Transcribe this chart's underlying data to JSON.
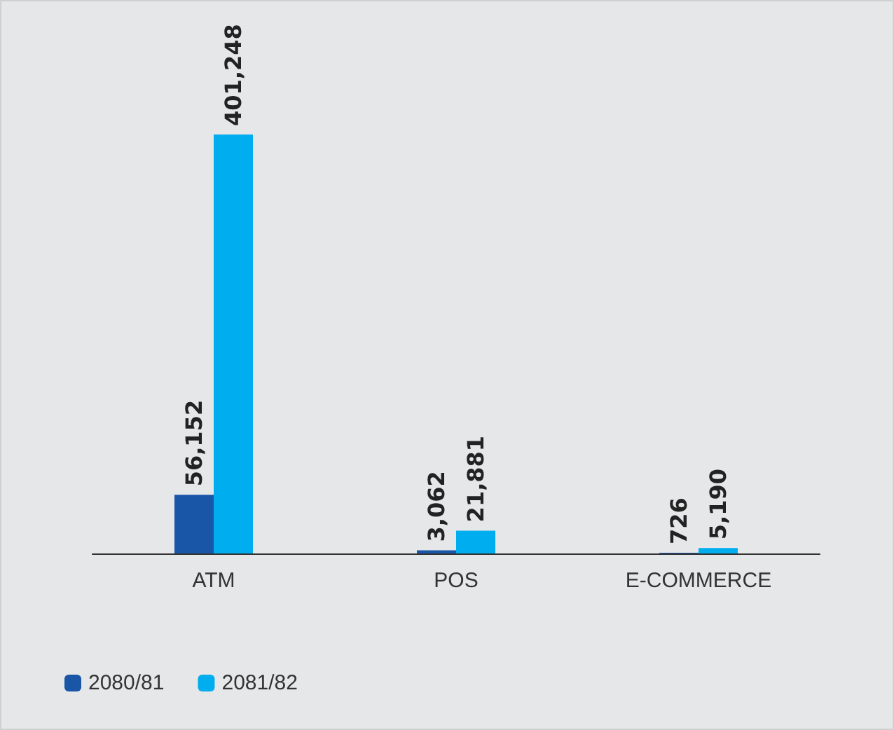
{
  "chart_data": {
    "type": "bar",
    "categories": [
      "ATM",
      "POS",
      "E-COMMERCE"
    ],
    "series": [
      {
        "name": "2080/81",
        "color": "#1a56a8",
        "values": [
          56152,
          3062,
          726
        ],
        "value_labels": [
          "56,152",
          "3,062",
          "726"
        ]
      },
      {
        "name": "2081/82",
        "color": "#00aeef",
        "values": [
          401248,
          21881,
          5190
        ],
        "value_labels": [
          "401,248",
          "21,881",
          "5,190"
        ]
      }
    ],
    "legend": "bottom left"
  }
}
